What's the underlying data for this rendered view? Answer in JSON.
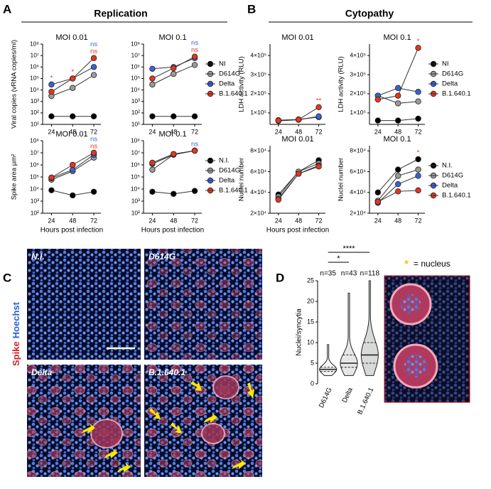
{
  "panel_labels": [
    "A",
    "B",
    "C",
    "D"
  ],
  "panel_titles": [
    "Replication",
    "Cytopathy"
  ],
  "chart_data": [
    {
      "type": "line",
      "title": "MOI 0.01",
      "ylabel": "Viral copies (vRNA copies/ml)",
      "log": true,
      "x": [
        24,
        48,
        72
      ],
      "xlim": [
        14,
        80
      ],
      "xticks": [
        24,
        48,
        72
      ],
      "ylim": [
        10,
        100000000
      ],
      "yticks": [
        {
          "value": 10,
          "label": "10¹"
        },
        {
          "value": 100,
          "label": "10²"
        },
        {
          "value": 1000,
          "label": "10³"
        },
        {
          "value": 10000,
          "label": "10⁴"
        },
        {
          "value": 100000,
          "label": "10⁵"
        },
        {
          "value": 1000000,
          "label": "10⁶"
        },
        {
          "value": 10000000,
          "label": "10⁷"
        },
        {
          "value": 100000000,
          "label": "10⁸"
        }
      ],
      "legend": false,
      "series": [
        {
          "color": "#000000",
          "values": [
            50,
            50,
            50
          ]
        },
        {
          "color": "#9a9a9a",
          "values": [
            3000,
            15000,
            200000
          ]
        },
        {
          "color": "#3a62d6",
          "values": [
            30000,
            100000,
            1000000
          ]
        },
        {
          "color": "#e8341c",
          "values": [
            7000,
            100000,
            6000000
          ]
        }
      ],
      "annotations": [
        {
          "text": "*",
          "color": "#3a62d6",
          "x": 24
        },
        {
          "text": "*",
          "color": "#e8341c",
          "x": 48
        },
        {
          "text": "ns",
          "color": "#3a62d6",
          "x": 72
        },
        {
          "text": "ns",
          "color": "#e8341c",
          "x": 72
        }
      ]
    },
    {
      "type": "line",
      "title": "MOI 0.1",
      "log": true,
      "x": [
        24,
        48,
        72
      ],
      "xlim": [
        14,
        80
      ],
      "xticks": [
        24,
        48,
        72
      ],
      "ylim": [
        10,
        100000000
      ],
      "yticks": [
        {
          "value": 10,
          "label": "10¹"
        },
        {
          "value": 100,
          "label": "10²"
        },
        {
          "value": 1000,
          "label": "10³"
        },
        {
          "value": 10000,
          "label": "10⁴"
        },
        {
          "value": 100000,
          "label": "10⁵"
        },
        {
          "value": 1000000,
          "label": "10⁶"
        },
        {
          "value": 10000000,
          "label": "10⁷"
        },
        {
          "value": 100000000,
          "label": "10⁸"
        }
      ],
      "legend": true,
      "series": [
        {
          "name": "NI",
          "color": "#000000",
          "values": [
            50,
            50,
            50
          ]
        },
        {
          "name": "D614G",
          "color": "#9a9a9a",
          "values": [
            30000,
            250000,
            1500000
          ]
        },
        {
          "name": "Delta",
          "color": "#3a62d6",
          "values": [
            700000,
            1000000,
            6000000
          ]
        },
        {
          "name": "B.1.640.1",
          "color": "#e8341c",
          "values": [
            100000,
            800000,
            8000000
          ]
        }
      ],
      "annotations": [
        {
          "text": "ns",
          "color": "#3a62d6",
          "x": 72
        },
        {
          "text": "ns",
          "color": "#e8341c",
          "x": 72
        }
      ]
    },
    {
      "type": "line",
      "title": "MOI 0.01",
      "ylabel": "Spike area µm²",
      "xlabel": "Hours post infection",
      "log": true,
      "x": [
        24,
        48,
        72
      ],
      "xlim": [
        14,
        80
      ],
      "xticks": [
        24,
        48,
        72
      ],
      "ylim": [
        100,
        100000000
      ],
      "yticks": [
        {
          "value": 100,
          "label": "10²"
        },
        {
          "value": 1000,
          "label": "10³"
        },
        {
          "value": 10000,
          "label": "10⁴"
        },
        {
          "value": 100000,
          "label": "10⁵"
        },
        {
          "value": 1000000,
          "label": "10⁶"
        },
        {
          "value": 10000000,
          "label": "10⁷"
        },
        {
          "value": 100000000,
          "label": "10⁸"
        }
      ],
      "legend": false,
      "series": [
        {
          "color": "#000000",
          "values": [
            8000,
            3000,
            6000
          ]
        },
        {
          "color": "#9a9a9a",
          "values": [
            60000,
            300000,
            4000000
          ]
        },
        {
          "color": "#3a62d6",
          "values": [
            80000,
            400000,
            7000000
          ]
        },
        {
          "color": "#e8341c",
          "values": [
            90000,
            1000000,
            10000000
          ]
        }
      ],
      "annotations": [
        {
          "text": "ns",
          "color": "#3a62d6",
          "x": 72
        },
        {
          "text": "ns",
          "color": "#e8341c",
          "x": 72
        }
      ]
    },
    {
      "type": "line",
      "title": "MOI 0.1",
      "xlabel": "Hours post infection",
      "log": true,
      "x": [
        24,
        48,
        72
      ],
      "xlim": [
        14,
        80
      ],
      "xticks": [
        24,
        48,
        72
      ],
      "ylim": [
        100,
        100000000
      ],
      "yticks": [
        {
          "value": 100,
          "label": "10²"
        },
        {
          "value": 1000,
          "label": "10³"
        },
        {
          "value": 10000,
          "label": "10⁴"
        },
        {
          "value": 100000,
          "label": "10⁵"
        },
        {
          "value": 1000000,
          "label": "10⁶"
        },
        {
          "value": 10000000,
          "label": "10⁷"
        },
        {
          "value": 100000000,
          "label": "10⁸"
        }
      ],
      "legend": true,
      "series": [
        {
          "name": "N.I.",
          "color": "#000000",
          "values": [
            6000,
            4000,
            7000
          ]
        },
        {
          "name": "D614G",
          "color": "#9a9a9a",
          "values": [
            400000,
            7000000,
            15000000
          ]
        },
        {
          "name": "Delta",
          "color": "#3a62d6",
          "values": [
            1200000,
            7000000,
            15000000
          ]
        },
        {
          "name": "B.1.640.1",
          "color": "#e8341c",
          "values": [
            1500000,
            8000000,
            15000000
          ]
        }
      ],
      "annotations": [
        {
          "text": "ns",
          "color": "#3a62d6",
          "x": 72
        }
      ]
    },
    {
      "type": "line",
      "title": "MOI 0.01",
      "ylabel": "LDH activity (RLU)",
      "log": false,
      "x": [
        24,
        48,
        72
      ],
      "xlim": [
        14,
        80
      ],
      "xticks": [
        24,
        48,
        72
      ],
      "ylim": [
        40000,
        460000
      ],
      "yticks": [
        {
          "value": 100000,
          "label": "1×10⁵"
        },
        {
          "value": 200000,
          "label": "2×10⁵"
        },
        {
          "value": 300000,
          "label": "3×10⁵"
        },
        {
          "value": 400000,
          "label": "4×10⁵"
        }
      ],
      "legend": false,
      "series": [
        {
          "color": "#000000",
          "values": [
            60000,
            65000,
            80000
          ]
        },
        {
          "color": "#9a9a9a",
          "values": [
            62000,
            66000,
            78000
          ]
        },
        {
          "color": "#3a62d6",
          "values": [
            58000,
            64000,
            82000
          ]
        },
        {
          "color": "#e8341c",
          "values": [
            60000,
            65000,
            130000
          ]
        }
      ],
      "annotations": [
        {
          "text": "**",
          "color": "#e8341c",
          "x": 72
        }
      ]
    },
    {
      "type": "line",
      "title": "MOI 0.1",
      "ylabel": "LDH activity (RLU)",
      "log": false,
      "x": [
        24,
        48,
        72
      ],
      "xlim": [
        14,
        80
      ],
      "xticks": [
        24,
        48,
        72
      ],
      "ylim": [
        40000,
        460000
      ],
      "yticks": [
        {
          "value": 100000,
          "label": "1×10⁵"
        },
        {
          "value": 200000,
          "label": "2×10⁵"
        },
        {
          "value": 300000,
          "label": "3×10⁵"
        },
        {
          "value": 400000,
          "label": "4×10⁵"
        }
      ],
      "legend": true,
      "series": [
        {
          "name": "NI",
          "color": "#000000",
          "values": [
            60000,
            60000,
            70000
          ]
        },
        {
          "name": "D614G",
          "color": "#9a9a9a",
          "values": [
            190000,
            150000,
            160000
          ]
        },
        {
          "name": "Delta",
          "color": "#3a62d6",
          "values": [
            190000,
            230000,
            210000
          ]
        },
        {
          "name": "B.1.640.1",
          "color": "#e8341c",
          "values": [
            170000,
            190000,
            440000
          ]
        }
      ],
      "annotations": [
        {
          "text": "*",
          "color": "#e8341c",
          "x": 72
        }
      ]
    },
    {
      "type": "line",
      "title": "MOI 0.01",
      "ylabel": "Nuclei number",
      "xlabel": "Hours post infection",
      "log": false,
      "x": [
        24,
        48,
        72
      ],
      "xlim": [
        14,
        80
      ],
      "xticks": [
        24,
        48,
        72
      ],
      "ylim": [
        20000,
        85000
      ],
      "yticks": [
        {
          "value": 20000,
          "label": "2×10⁴"
        },
        {
          "value": 40000,
          "label": "4×10⁴"
        },
        {
          "value": 60000,
          "label": "6×10⁴"
        },
        {
          "value": 80000,
          "label": "8×10⁴"
        }
      ],
      "legend": false,
      "series": [
        {
          "color": "#000000",
          "values": [
            38000,
            60000,
            71000
          ]
        },
        {
          "color": "#9a9a9a",
          "values": [
            36000,
            60000,
            68000
          ]
        },
        {
          "color": "#3a62d6",
          "values": [
            34000,
            58000,
            66000
          ]
        },
        {
          "color": "#e8341c",
          "values": [
            33000,
            58000,
            65000
          ]
        }
      ],
      "annotations": []
    },
    {
      "type": "line",
      "title": "MOI 0.1",
      "ylabel": "Nuclei number",
      "log": false,
      "x": [
        24,
        48,
        72
      ],
      "xlim": [
        14,
        80
      ],
      "xticks": [
        24,
        48,
        72
      ],
      "ylim": [
        20000,
        85000
      ],
      "yticks": [
        {
          "value": 20000,
          "label": "2×10⁴"
        },
        {
          "value": 40000,
          "label": "4×10⁴"
        },
        {
          "value": 60000,
          "label": "6×10⁴"
        },
        {
          "value": 80000,
          "label": "8×10⁴"
        }
      ],
      "legend": true,
      "series": [
        {
          "name": "N.I.",
          "color": "#000000",
          "values": [
            40000,
            62000,
            72000
          ]
        },
        {
          "name": "D614G",
          "color": "#9a9a9a",
          "values": [
            32000,
            56000,
            62000
          ]
        },
        {
          "name": "Delta",
          "color": "#3a62d6",
          "values": [
            30000,
            48000,
            56000
          ]
        },
        {
          "name": "B.1.640.1",
          "color": "#e8341c",
          "values": [
            31000,
            41000,
            42000
          ]
        }
      ],
      "annotations": [
        {
          "text": "*",
          "color": "#e8341c",
          "x": 72
        }
      ]
    },
    {
      "type": "violin",
      "ylabel": "Nuclei/syncytia",
      "categories": [
        "D614G",
        "Delta",
        "B.1.640.1"
      ],
      "n_labels": [
        "n=35",
        "n=43",
        "n=118"
      ],
      "ylim": [
        0,
        25
      ],
      "yticks": [
        0,
        5,
        10,
        15,
        20,
        25
      ],
      "mins": [
        2,
        2,
        2
      ],
      "q1": [
        3,
        4,
        5
      ],
      "medians": [
        3.5,
        5,
        7
      ],
      "q3": [
        4,
        7,
        10
      ],
      "maxs": [
        9.5,
        22,
        25
      ],
      "significance": [
        "*",
        "****"
      ]
    }
  ],
  "C": {
    "stain_labels": [
      "Spike",
      "Hoechst"
    ],
    "images": [
      "N.I.",
      "D614G",
      "Delta",
      "B.1.640.1"
    ]
  },
  "D_legend": {
    "symbol": "*",
    "text": "= nucleus"
  }
}
